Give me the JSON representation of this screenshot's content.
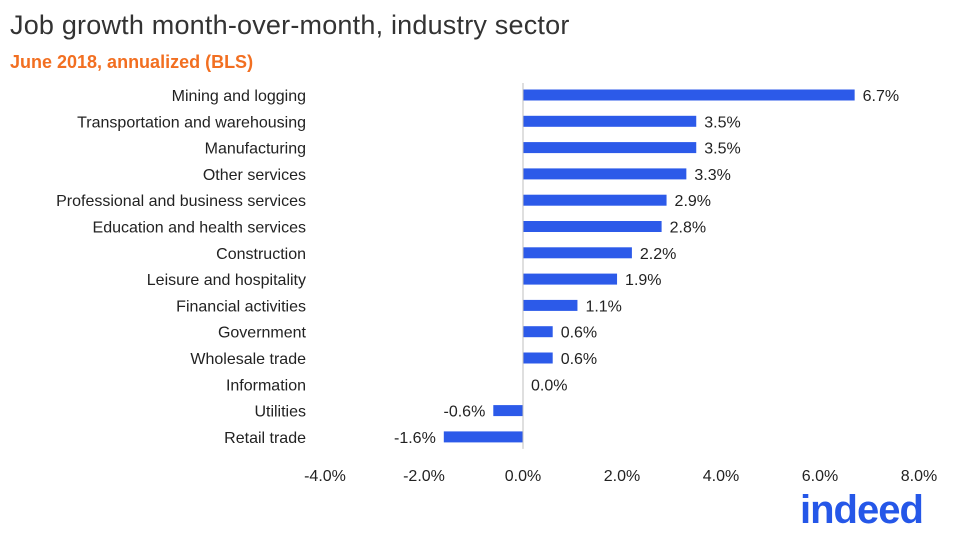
{
  "title": "Job growth month-over-month, industry sector",
  "subtitle": "June 2018, annualized (BLS)",
  "logo_text": "indeed",
  "colors": {
    "bar": "#2c5ae9",
    "subtitle": "#f26f21",
    "logo": "#2557e8"
  },
  "chart_data": {
    "type": "bar",
    "orientation": "horizontal",
    "categories": [
      "Mining and logging",
      "Transportation and warehousing",
      "Manufacturing",
      "Other services",
      "Professional and business services",
      "Education and health services",
      "Construction",
      "Leisure and hospitality",
      "Financial activities",
      "Government",
      "Wholesale trade",
      "Information",
      "Utilities",
      "Retail trade"
    ],
    "values": [
      6.7,
      3.5,
      3.5,
      3.3,
      2.9,
      2.8,
      2.2,
      1.9,
      1.1,
      0.6,
      0.6,
      0.0,
      -0.6,
      -1.6
    ],
    "value_labels": [
      "6.7%",
      "3.5%",
      "3.5%",
      "3.3%",
      "2.9%",
      "2.8%",
      "2.2%",
      "1.9%",
      "1.1%",
      "0.6%",
      "0.6%",
      "0.0%",
      "-0.6%",
      "-1.6%"
    ],
    "xlim": [
      -4.0,
      8.0
    ],
    "xticks": [
      -4.0,
      -2.0,
      0.0,
      2.0,
      4.0,
      6.0,
      8.0
    ],
    "xtick_labels": [
      "-4.0%",
      "-2.0%",
      "0.0%",
      "2.0%",
      "4.0%",
      "6.0%",
      "8.0%"
    ],
    "grid": false,
    "legend": "none"
  }
}
